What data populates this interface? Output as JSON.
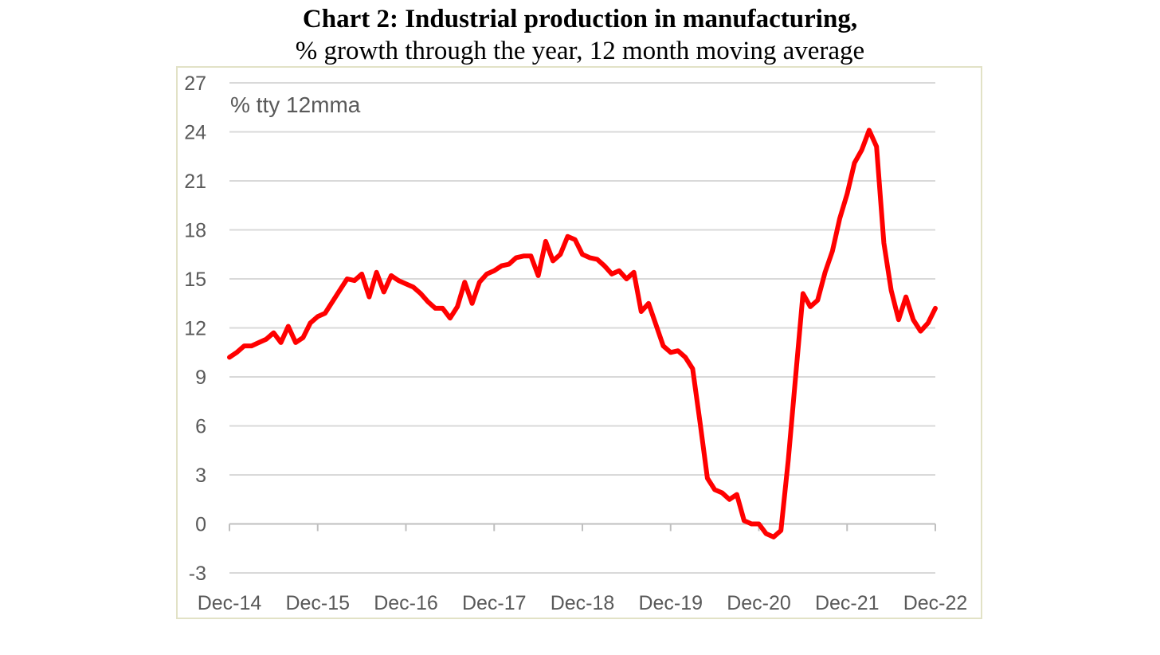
{
  "title": "Chart 2: Industrial production in manufacturing,",
  "subtitle": "% growth through the year, 12 month moving average",
  "chart_data": {
    "type": "line",
    "title": "Chart 2: Industrial production in manufacturing,",
    "subtitle": "% growth through the year, 12 month moving average",
    "unit_label": "% tty 12mma",
    "xlabel": "",
    "ylabel": "",
    "ylim": [
      -3,
      27
    ],
    "yticks": [
      -3,
      0,
      3,
      6,
      9,
      12,
      15,
      18,
      21,
      24,
      27
    ],
    "xticks": [
      "Dec-14",
      "Dec-15",
      "Dec-16",
      "Dec-17",
      "Dec-18",
      "Dec-19",
      "Dec-20",
      "Dec-21",
      "Dec-22"
    ],
    "grid": "horizontal",
    "legend": "none",
    "line_color": "#ff0000",
    "series": [
      {
        "x": [
          "Dec-14",
          "Jan-15",
          "Feb-15",
          "Mar-15",
          "Apr-15",
          "May-15",
          "Jun-15",
          "Jul-15",
          "Aug-15",
          "Sep-15",
          "Oct-15",
          "Nov-15",
          "Dec-15",
          "Jan-16",
          "Feb-16",
          "Mar-16",
          "Apr-16",
          "May-16",
          "Jun-16",
          "Jul-16",
          "Aug-16",
          "Sep-16",
          "Oct-16",
          "Nov-16",
          "Dec-16",
          "Jan-17",
          "Feb-17",
          "Mar-17",
          "Apr-17",
          "May-17",
          "Jun-17",
          "Jul-17",
          "Aug-17",
          "Sep-17",
          "Oct-17",
          "Nov-17",
          "Dec-17",
          "Jan-18",
          "Feb-18",
          "Mar-18",
          "Apr-18",
          "May-18",
          "Jun-18",
          "Jul-18",
          "Aug-18",
          "Sep-18",
          "Oct-18",
          "Nov-18",
          "Dec-18",
          "Jan-19",
          "Feb-19",
          "Mar-19",
          "Apr-19",
          "May-19",
          "Jun-19",
          "Jul-19",
          "Aug-19",
          "Sep-19",
          "Oct-19",
          "Nov-19",
          "Dec-19",
          "Jan-20",
          "Feb-20",
          "Mar-20",
          "Apr-20",
          "May-20",
          "Jun-20",
          "Jul-20",
          "Aug-20",
          "Sep-20",
          "Oct-20",
          "Nov-20",
          "Dec-20",
          "Jan-21",
          "Feb-21",
          "Mar-21",
          "Apr-21",
          "May-21",
          "Jun-21",
          "Jul-21",
          "Aug-21",
          "Sep-21",
          "Oct-21",
          "Nov-21",
          "Dec-21",
          "Jan-22",
          "Feb-22",
          "Mar-22",
          "Apr-22",
          "May-22",
          "Jun-22",
          "Jul-22",
          "Aug-22",
          "Sep-22",
          "Oct-22",
          "Nov-22",
          "Dec-22"
        ],
        "values": [
          10.2,
          10.5,
          10.9,
          10.9,
          11.1,
          11.3,
          11.7,
          11.1,
          12.1,
          11.1,
          11.4,
          12.3,
          12.7,
          12.9,
          13.6,
          14.3,
          15.0,
          14.9,
          15.3,
          13.9,
          15.4,
          14.2,
          15.2,
          14.9,
          14.7,
          14.5,
          14.1,
          13.6,
          13.2,
          13.2,
          12.6,
          13.3,
          14.8,
          13.5,
          14.8,
          15.3,
          15.5,
          15.8,
          15.9,
          16.3,
          16.4,
          16.4,
          15.2,
          17.3,
          16.1,
          16.5,
          17.6,
          17.4,
          16.5,
          16.3,
          16.2,
          15.8,
          15.3,
          15.5,
          15.0,
          15.4,
          13.0,
          13.5,
          12.2,
          10.9,
          10.5,
          10.6,
          10.2,
          9.5,
          6.2,
          2.8,
          2.1,
          1.9,
          1.5,
          1.8,
          0.2,
          0.0,
          0.0,
          -0.6,
          -0.8,
          -0.4,
          3.9,
          9.0,
          14.1,
          13.3,
          13.7,
          15.4,
          16.7,
          18.7,
          20.2,
          22.1,
          22.9,
          24.1,
          23.1,
          17.2,
          14.3,
          12.5,
          13.9,
          12.5,
          11.8,
          12.3,
          13.2
        ]
      }
    ]
  }
}
